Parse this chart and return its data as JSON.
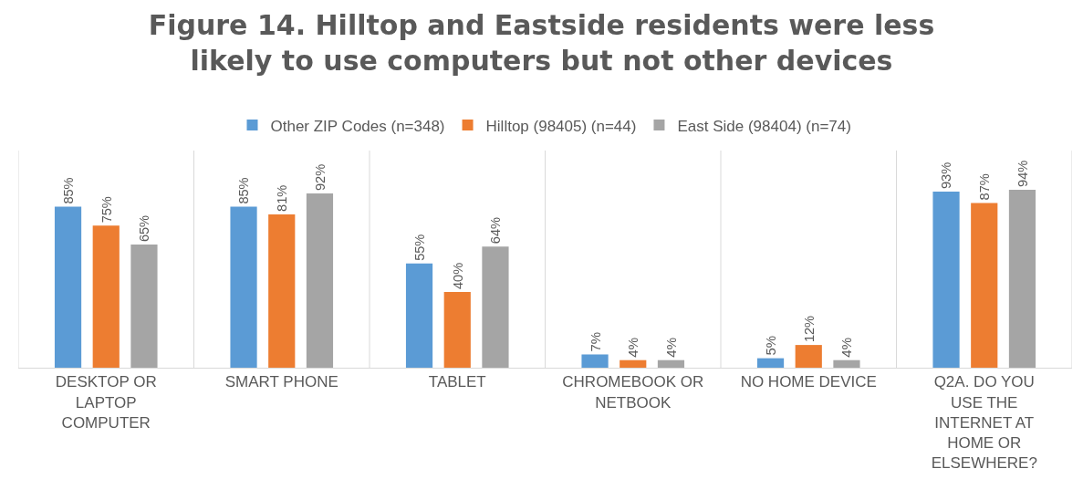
{
  "chart_data": {
    "type": "bar",
    "title": "Figure 14. Hilltop and Eastside residents were less likely to use computers but not other devices",
    "categories": [
      "DESKTOP OR LAPTOP COMPUTER",
      "SMART PHONE",
      "TABLET",
      "CHROMEBOOK OR NETBOOK",
      "NO HOME DEVICE",
      "Q2A. DO YOU USE THE INTERNET AT HOME OR ELSEWHERE?"
    ],
    "series": [
      {
        "name": "Other ZIP Codes (n=348)",
        "color": "#5b9bd5",
        "values": [
          85,
          85,
          55,
          7,
          5,
          93
        ],
        "value_labels": [
          "85%",
          "85%",
          "55%",
          "7%",
          "5%",
          "93%"
        ]
      },
      {
        "name": "Hilltop (98405) (n=44)",
        "color": "#ed7d31",
        "values": [
          75,
          81,
          40,
          4,
          12,
          87
        ],
        "value_labels": [
          "75%",
          "81%",
          "40%",
          "4%",
          "12%",
          "87%"
        ]
      },
      {
        "name": "East Side (98404) (n=74)",
        "color": "#a5a5a5",
        "values": [
          65,
          92,
          64,
          4,
          4,
          94
        ],
        "value_labels": [
          "65%",
          "92%",
          "64%",
          "4%",
          "4%",
          "94%"
        ]
      }
    ],
    "grid": "x",
    "legend": "top"
  }
}
